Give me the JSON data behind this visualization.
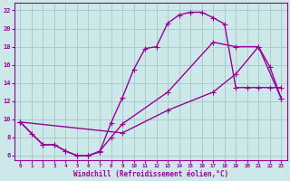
{
  "bg_color": "#cce8e8",
  "line_color": "#990099",
  "grid_color": "#aacccc",
  "xlabel": "Windchill (Refroidissement éolien,°C)",
  "yticks": [
    6,
    8,
    10,
    12,
    14,
    16,
    18,
    20,
    22
  ],
  "xlim": [
    -0.5,
    23.5
  ],
  "ylim": [
    5.5,
    22.8
  ],
  "curve1_x": [
    0,
    1,
    2,
    3,
    4,
    5,
    6,
    7,
    8,
    9,
    10,
    11,
    12,
    13,
    14,
    15,
    16,
    17,
    18,
    19,
    20,
    21,
    22,
    23
  ],
  "curve1_y": [
    9.7,
    8.4,
    7.2,
    7.2,
    6.5,
    6.0,
    6.0,
    6.4,
    9.6,
    12.4,
    15.5,
    17.8,
    18.0,
    20.6,
    21.5,
    21.8,
    21.8,
    21.2,
    20.5,
    13.5,
    13.5,
    13.5,
    13.5,
    13.5
  ],
  "curve2_x": [
    0,
    2,
    3,
    4,
    5,
    6,
    7,
    8,
    9,
    13,
    17,
    19,
    21,
    22,
    23
  ],
  "curve2_y": [
    9.7,
    7.2,
    7.2,
    6.5,
    6.0,
    6.0,
    6.5,
    8.0,
    9.5,
    13.0,
    18.5,
    18.0,
    18.0,
    15.8,
    12.3
  ],
  "curve3_x": [
    0,
    9,
    13,
    17,
    19,
    21,
    23
  ],
  "curve3_y": [
    9.7,
    8.5,
    11.0,
    13.0,
    15.0,
    18.0,
    12.3
  ],
  "xtick_labels": [
    "0",
    "1",
    "2",
    "3",
    "4",
    "5",
    "6",
    "7",
    "8",
    "9",
    "10",
    "11",
    "12",
    "13",
    "14",
    "15",
    "16",
    "17",
    "18",
    "19",
    "20",
    "21",
    "22",
    "23"
  ]
}
